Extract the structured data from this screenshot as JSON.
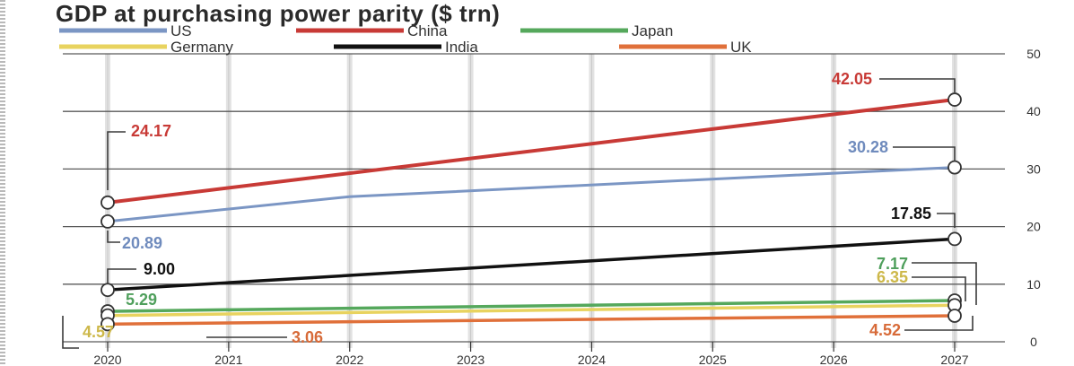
{
  "chart_data": {
    "type": "line",
    "title": "GDP at purchasing power parity ($ trn)",
    "x": [
      2020,
      2027
    ],
    "x_ticks": [
      "2020",
      "2021",
      "2022",
      "2023",
      "2024",
      "2025",
      "2026",
      "2027"
    ],
    "ylim": [
      0,
      50
    ],
    "y_ticks": [
      "0",
      "10",
      "20",
      "30",
      "40",
      "50"
    ],
    "grid": true,
    "legend_position": "top",
    "series": [
      {
        "name": "US",
        "color": "#7b96c4",
        "values": [
          20.89,
          30.28
        ],
        "labels": [
          "20.89",
          "30.28"
        ],
        "label_color": "#6f8bbd"
      },
      {
        "name": "China",
        "color": "#c83a36",
        "values": [
          24.17,
          42.05
        ],
        "labels": [
          "24.17",
          "42.05"
        ],
        "label_color": "#c83a36"
      },
      {
        "name": "Japan",
        "color": "#55a85c",
        "values": [
          5.29,
          7.17
        ],
        "labels": [
          "5.29",
          "7.17"
        ],
        "label_color": "#4f9f5c"
      },
      {
        "name": "Germany",
        "color": "#e8d35f",
        "values": [
          4.57,
          6.35
        ],
        "labels": [
          "4.57",
          "6.35"
        ],
        "label_color": "#cdb84a"
      },
      {
        "name": "India",
        "color": "#111111",
        "values": [
          9.0,
          17.85
        ],
        "labels": [
          "9.00",
          "17.85"
        ],
        "label_color": "#111111"
      },
      {
        "name": "UK",
        "color": "#e0703a",
        "values": [
          3.06,
          4.52
        ],
        "labels": [
          "3.06",
          "4.52"
        ],
        "label_color": "#d76a38"
      }
    ]
  }
}
